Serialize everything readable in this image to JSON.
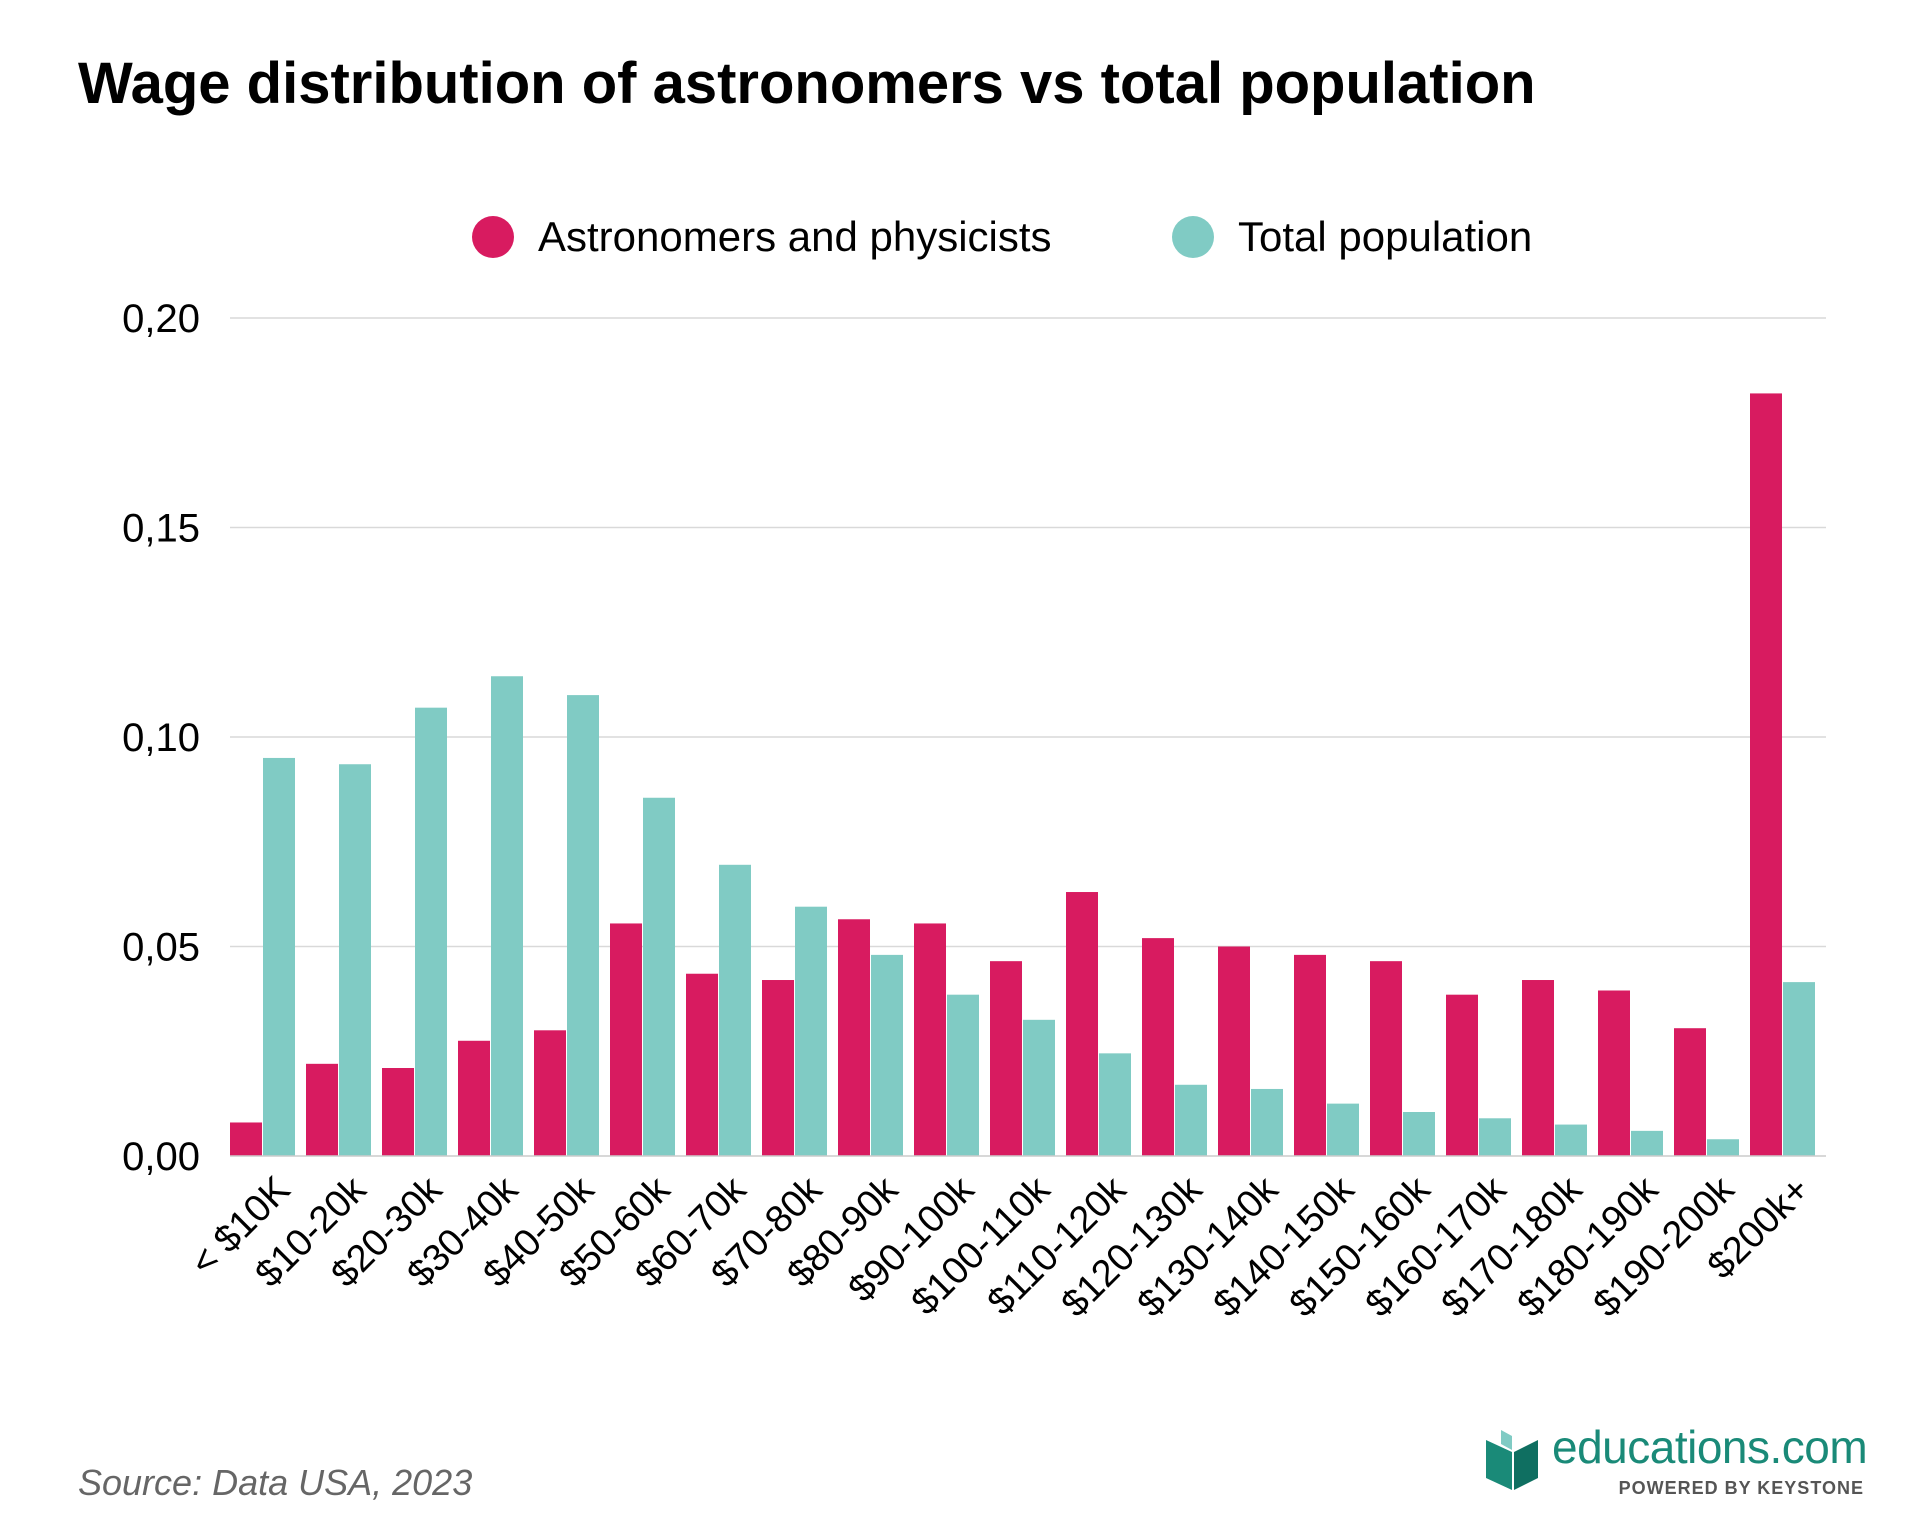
{
  "title": "Wage distribution of astronomers vs total population",
  "source": "Source: Data USA, 2023",
  "logo": {
    "wordmark": "educations.com",
    "tagline": "POWERED BY KEYSTONE",
    "icon": "open-book-icon",
    "color": "#1a8a78"
  },
  "chart_data": {
    "type": "bar",
    "categories": [
      "< $10K",
      "$10-20k",
      "$20-30k",
      "$30-40k",
      "$40-50k",
      "$50-60k",
      "$60-70k",
      "$70-80k",
      "$80-90k",
      "$90-100k",
      "$100-110k",
      "$110-120k",
      "$120-130k",
      "$130-140k",
      "$140-150k",
      "$150-160k",
      "$160-170k",
      "$170-180k",
      "$180-190k",
      "$190-200k",
      "$200k+"
    ],
    "series": [
      {
        "name": "Astronomers and physicists",
        "color": "#d81b60",
        "values": [
          0.008,
          0.022,
          0.021,
          0.0275,
          0.03,
          0.0555,
          0.0435,
          0.042,
          0.0565,
          0.0555,
          0.0465,
          0.063,
          0.052,
          0.05,
          0.048,
          0.0465,
          0.0385,
          0.042,
          0.0395,
          0.0305,
          0.182
        ]
      },
      {
        "name": "Total population",
        "color": "#80cbc4",
        "values": [
          0.095,
          0.0935,
          0.107,
          0.1145,
          0.11,
          0.0855,
          0.0695,
          0.0595,
          0.048,
          0.0385,
          0.0325,
          0.0245,
          0.017,
          0.016,
          0.0125,
          0.0105,
          0.009,
          0.0075,
          0.006,
          0.004,
          0.0415
        ]
      }
    ],
    "yticks": [
      "0,00",
      "0,05",
      "0,10",
      "0,15",
      "0,20"
    ],
    "ylim": [
      0,
      0.2
    ],
    "grid": true,
    "legend": "top-center"
  }
}
